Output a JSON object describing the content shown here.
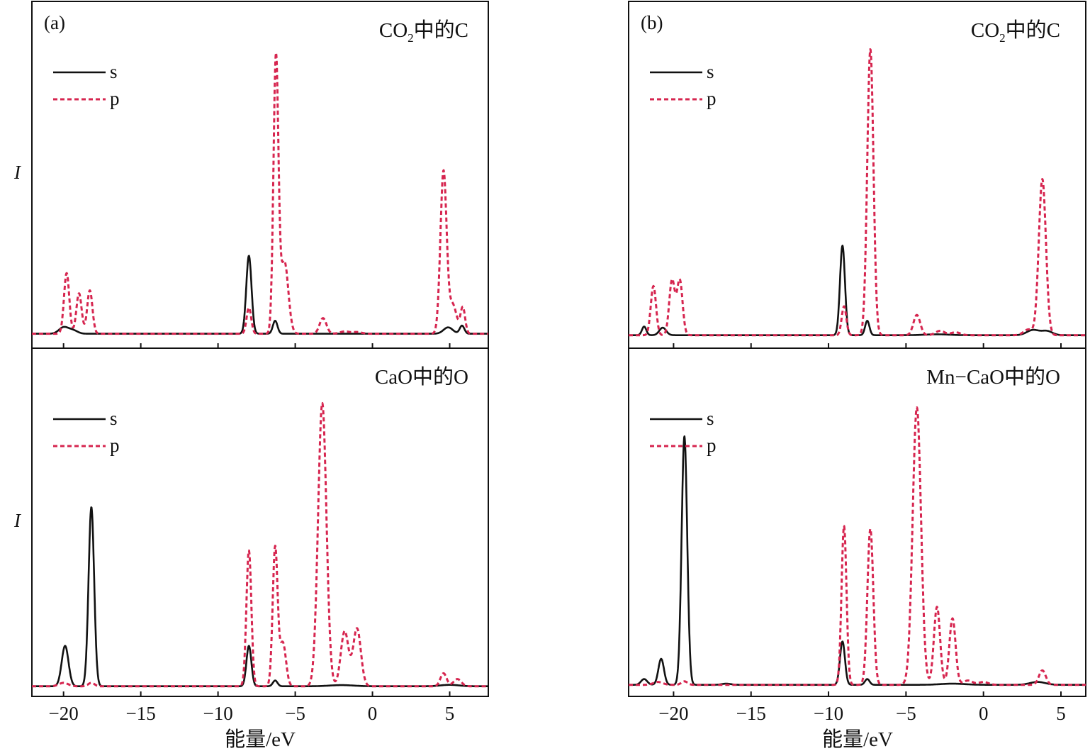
{
  "figure": {
    "panel_labels": [
      "(a)",
      "(b)"
    ],
    "xlabel": "能量/eV",
    "ylabel": "I",
    "colors": {
      "s": "#111111",
      "p": "#d6254f",
      "axis": "#111111"
    }
  },
  "chart_data": [
    {
      "type": "line",
      "column": "a",
      "row": "top",
      "title": "CO₂中的C",
      "title_main": "CO",
      "title_sub": "2",
      "title_rest": "中的C",
      "xlim": [
        -22.05,
        7.5
      ],
      "ylim": [
        -0.05,
        1.15
      ],
      "xticks": [
        -20,
        -15,
        -10,
        -5,
        0,
        5
      ],
      "xtick_labels": [
        "−20",
        "−15",
        "−10",
        "−5",
        "0",
        "5"
      ],
      "legend": [
        "s",
        "p"
      ],
      "legend_position": "top-left",
      "series": [
        {
          "name": "s",
          "style": "solid",
          "peaks": [
            [
              -20.0,
              0.022,
              0.3
            ],
            [
              -19.4,
              0.012,
              0.3
            ],
            [
              -8.0,
              0.27,
              0.17
            ],
            [
              -6.3,
              0.045,
              0.15
            ],
            [
              4.9,
              0.022,
              0.3
            ],
            [
              5.8,
              0.028,
              0.15
            ]
          ]
        },
        {
          "name": "p",
          "style": "dashed",
          "peaks": [
            [
              -19.8,
              0.21,
              0.17
            ],
            [
              -19.0,
              0.14,
              0.17
            ],
            [
              -18.3,
              0.15,
              0.17
            ],
            [
              -8.0,
              0.09,
              0.15
            ],
            [
              -6.25,
              0.95,
              0.16
            ],
            [
              -5.7,
              0.25,
              0.25
            ],
            [
              -3.2,
              0.054,
              0.22
            ],
            [
              -1.8,
              0.008,
              0.3
            ],
            [
              -1.0,
              0.006,
              0.3
            ],
            [
              4.6,
              0.56,
              0.2
            ],
            [
              5.2,
              0.1,
              0.25
            ],
            [
              5.85,
              0.09,
              0.15
            ]
          ]
        }
      ]
    },
    {
      "type": "line",
      "column": "a",
      "row": "bottom",
      "title": "CaO中的O",
      "title_main": "CaO中的O",
      "title_sub": "",
      "title_rest": "",
      "xlim": [
        -22.05,
        7.5
      ],
      "ylim": [
        -0.035,
        1.17
      ],
      "xticks": [
        -20,
        -15,
        -10,
        -5,
        0,
        5
      ],
      "xtick_labels": [
        "−20",
        "−15",
        "−10",
        "−5",
        "0",
        "5"
      ],
      "legend": [
        "s",
        "p"
      ],
      "legend_position": "top-left",
      "series": [
        {
          "name": "s",
          "style": "solid",
          "peaks": [
            [
              -19.9,
              0.14,
              0.22
            ],
            [
              -18.2,
              0.62,
              0.18
            ],
            [
              -8.0,
              0.14,
              0.16
            ],
            [
              -6.3,
              0.02,
              0.15
            ],
            [
              -2.0,
              0.004,
              0.8
            ],
            [
              5.0,
              0.005,
              0.6
            ]
          ]
        },
        {
          "name": "p",
          "style": "dashed",
          "peaks": [
            [
              -20.0,
              0.012,
              0.3
            ],
            [
              -18.2,
              0.012,
              0.2
            ],
            [
              -8.0,
              0.47,
              0.16
            ],
            [
              -6.3,
              0.48,
              0.16
            ],
            [
              -5.8,
              0.15,
              0.2
            ],
            [
              -3.25,
              0.98,
              0.27
            ],
            [
              -1.8,
              0.19,
              0.25
            ],
            [
              -1.0,
              0.2,
              0.25
            ],
            [
              4.6,
              0.045,
              0.2
            ],
            [
              5.5,
              0.025,
              0.25
            ]
          ]
        }
      ]
    },
    {
      "type": "line",
      "column": "b",
      "row": "top",
      "title": "CO₂中的C",
      "title_main": "CO",
      "title_sub": "2",
      "title_rest": "中的C",
      "xlim": [
        -22.9,
        6.6
      ],
      "ylim": [
        -0.045,
        1.155
      ],
      "xticks": [
        -20,
        -15,
        -10,
        -5,
        0,
        5
      ],
      "xtick_labels": [
        "−20",
        "−15",
        "−10",
        "−5",
        "0",
        "5"
      ],
      "legend": [
        "s",
        "p"
      ],
      "legend_position": "top-left",
      "series": [
        {
          "name": "s",
          "style": "solid",
          "peaks": [
            [
              -21.9,
              0.03,
              0.14
            ],
            [
              -20.7,
              0.026,
              0.22
            ],
            [
              -9.1,
              0.31,
              0.16
            ],
            [
              -7.5,
              0.05,
              0.14
            ],
            [
              -3.0,
              0.003,
              0.8
            ],
            [
              3.2,
              0.018,
              0.4
            ],
            [
              4.1,
              0.014,
              0.35
            ]
          ]
        },
        {
          "name": "p",
          "style": "dashed",
          "peaks": [
            [
              -21.3,
              0.17,
              0.17
            ],
            [
              -20.1,
              0.19,
              0.18
            ],
            [
              -19.6,
              0.19,
              0.18
            ],
            [
              -9.0,
              0.1,
              0.15
            ],
            [
              -7.3,
              0.99,
              0.2
            ],
            [
              -4.3,
              0.07,
              0.22
            ],
            [
              -2.8,
              0.015,
              0.3
            ],
            [
              -1.8,
              0.01,
              0.3
            ],
            [
              2.9,
              0.02,
              0.3
            ],
            [
              3.8,
              0.54,
              0.23
            ]
          ]
        }
      ]
    },
    {
      "type": "line",
      "column": "b",
      "row": "bottom",
      "title": "Mn−CaO中的O",
      "title_main": "Mn−CaO中的O",
      "title_sub": "",
      "title_rest": "",
      "xlim": [
        -22.9,
        6.6
      ],
      "ylim": [
        -0.04,
        1.165
      ],
      "xticks": [
        -20,
        -15,
        -10,
        -5,
        0,
        5
      ],
      "xtick_labels": [
        "−20",
        "−15",
        "−10",
        "−5",
        "0",
        "5"
      ],
      "legend": [
        "s",
        "p"
      ],
      "legend_position": "top-left",
      "series": [
        {
          "name": "s",
          "style": "solid",
          "peaks": [
            [
              -21.9,
              0.02,
              0.2
            ],
            [
              -20.8,
              0.09,
              0.18
            ],
            [
              -19.3,
              0.86,
              0.18
            ],
            [
              -16.6,
              0.004,
              0.3
            ],
            [
              -9.1,
              0.15,
              0.16
            ],
            [
              -7.5,
              0.02,
              0.15
            ],
            [
              -2.0,
              0.004,
              0.8
            ],
            [
              3.5,
              0.01,
              0.5
            ]
          ]
        },
        {
          "name": "p",
          "style": "dashed",
          "peaks": [
            [
              -21.0,
              0.01,
              0.3
            ],
            [
              -19.3,
              0.012,
              0.2
            ],
            [
              -9.0,
              0.55,
              0.16
            ],
            [
              -7.3,
              0.54,
              0.19
            ],
            [
              -4.3,
              0.96,
              0.27
            ],
            [
              -3.0,
              0.27,
              0.2
            ],
            [
              -2.0,
              0.23,
              0.2
            ],
            [
              -1.0,
              0.015,
              0.3
            ],
            [
              0.0,
              0.01,
              0.3
            ],
            [
              3.8,
              0.05,
              0.22
            ]
          ]
        }
      ]
    }
  ]
}
